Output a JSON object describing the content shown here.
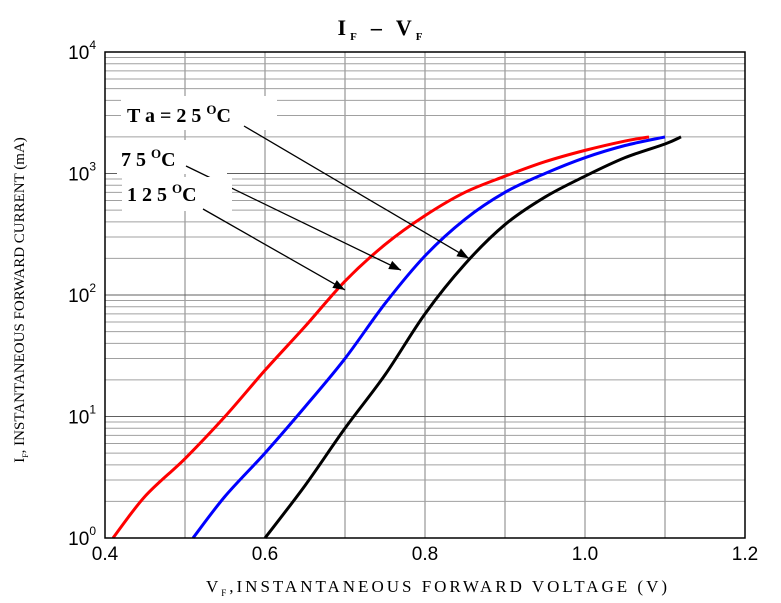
{
  "chart_data": {
    "type": "line",
    "title": {
      "main_i": "I",
      "sub_f": "F",
      "dash": "–",
      "main_v": "V",
      "sub_f2": "F"
    },
    "xlabel": {
      "letter": "V",
      "sub": "F",
      "rest": ",INSTANTANEOUS FORWARD VOLTAGE (V)"
    },
    "ylabel": {
      "letter": "I",
      "sub": "F",
      "rest": ", INSTANTANEOUS FORWARD CURRENT (mA)"
    },
    "x_scale": "linear",
    "y_scale": "log",
    "xlim": [
      0.4,
      1.2
    ],
    "ylim": [
      1,
      10000
    ],
    "x_ticks": [
      {
        "value": 0.4,
        "label": "0.4"
      },
      {
        "value": 0.6,
        "label": "0.6"
      },
      {
        "value": 0.8,
        "label": "0.8"
      },
      {
        "value": 1.0,
        "label": "1.0"
      },
      {
        "value": 1.2,
        "label": "1.2"
      }
    ],
    "y_ticks": [
      {
        "value": 1,
        "base": "10",
        "exp": "0"
      },
      {
        "value": 10,
        "base": "10",
        "exp": "1"
      },
      {
        "value": 100,
        "base": "10",
        "exp": "2"
      },
      {
        "value": 1000,
        "base": "10",
        "exp": "3"
      },
      {
        "value": 10000,
        "base": "10",
        "exp": "4"
      }
    ],
    "grid": true,
    "series": [
      {
        "name": "Ta = 25 °C",
        "color": "#000000",
        "points": [
          [
            0.6,
            1
          ],
          [
            0.65,
            2.7
          ],
          [
            0.7,
            8
          ],
          [
            0.75,
            22
          ],
          [
            0.8,
            70
          ],
          [
            0.85,
            180
          ],
          [
            0.9,
            380
          ],
          [
            0.95,
            640
          ],
          [
            1.0,
            950
          ],
          [
            1.05,
            1350
          ],
          [
            1.1,
            1750
          ],
          [
            1.12,
            2000
          ]
        ]
      },
      {
        "name": "75 °C",
        "color": "#0000ff",
        "points": [
          [
            0.51,
            1
          ],
          [
            0.55,
            2.2
          ],
          [
            0.6,
            5
          ],
          [
            0.65,
            12
          ],
          [
            0.7,
            30
          ],
          [
            0.75,
            85
          ],
          [
            0.8,
            210
          ],
          [
            0.85,
            420
          ],
          [
            0.9,
            700
          ],
          [
            0.95,
            1000
          ],
          [
            1.0,
            1350
          ],
          [
            1.05,
            1700
          ],
          [
            1.1,
            2000
          ]
        ]
      },
      {
        "name": "125 °C",
        "color": "#ff0000",
        "points": [
          [
            0.41,
            1
          ],
          [
            0.45,
            2.2
          ],
          [
            0.5,
            4.5
          ],
          [
            0.55,
            10
          ],
          [
            0.6,
            24
          ],
          [
            0.65,
            55
          ],
          [
            0.7,
            130
          ],
          [
            0.75,
            260
          ],
          [
            0.8,
            450
          ],
          [
            0.85,
            700
          ],
          [
            0.9,
            950
          ],
          [
            0.95,
            1250
          ],
          [
            1.0,
            1550
          ],
          [
            1.05,
            1850
          ],
          [
            1.08,
            2000
          ]
        ]
      }
    ],
    "annotations": [
      {
        "series": 0,
        "text": "T a = 2 5",
        "deg": "O",
        "unit": "C",
        "x": 0.855,
        "y": 200
      },
      {
        "series": 1,
        "text": "7 5",
        "deg": "O",
        "unit": "C",
        "x": 0.77,
        "y": 160
      },
      {
        "series": 2,
        "text": "1 2 5",
        "deg": "O",
        "unit": "C",
        "x": 0.7,
        "y": 110
      }
    ]
  }
}
